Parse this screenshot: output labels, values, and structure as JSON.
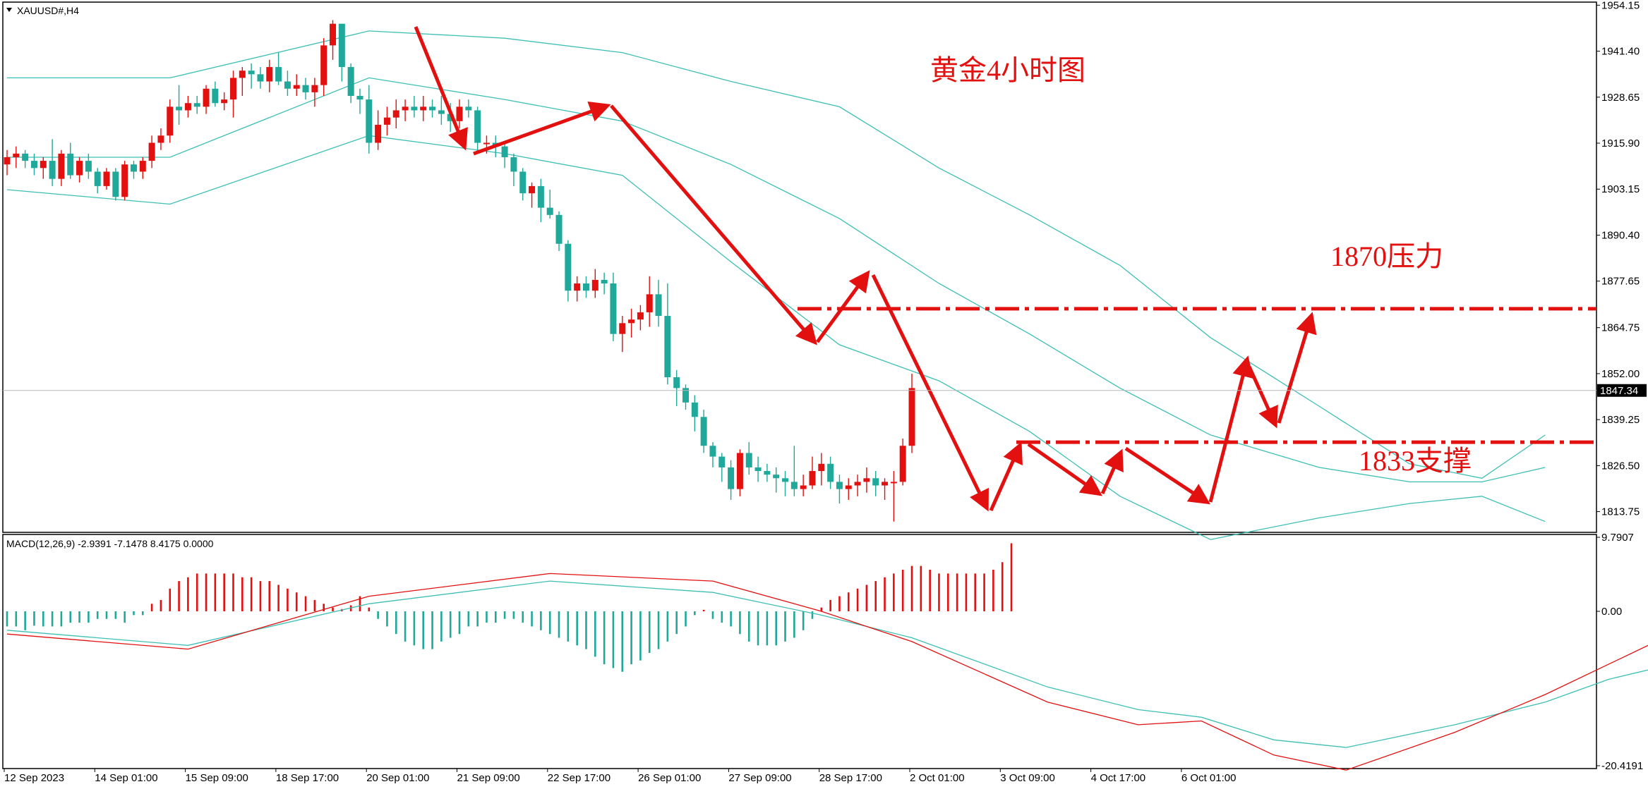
{
  "chart_data": [
    {
      "type": "candlestick",
      "symbol_label": "XAUUSD#,H4",
      "title": "黄金4小时图",
      "price_axis": {
        "ticks": [
          "1954.15",
          "1941.40",
          "1928.65",
          "1915.90",
          "1903.15",
          "1890.40",
          "1877.65",
          "1864.75",
          "1852.00",
          "1839.25",
          "1826.50",
          "1813.75"
        ],
        "range": [
          1808,
          1955
        ],
        "current_price": "1847.34"
      },
      "time_axis": {
        "labels": [
          "12 Sep 2023",
          "14 Sep 01:00",
          "15 Sep 09:00",
          "18 Sep 17:00",
          "20 Sep 01:00",
          "21 Sep 09:00",
          "22 Sep 17:00",
          "26 Sep 01:00",
          "27 Sep 09:00",
          "28 Sep 17:00",
          "2 Oct 01:00",
          "3 Oct 09:00",
          "4 Oct 17:00",
          "6 Oct 01:00"
        ]
      },
      "candles": [
        [
          1910,
          1914,
          1907,
          1912
        ],
        [
          1912,
          1915,
          1909,
          1913
        ],
        [
          1913,
          1914,
          1909,
          1911
        ],
        [
          1911,
          1913,
          1907,
          1909
        ],
        [
          1909,
          1912,
          1906,
          1911
        ],
        [
          1911,
          1917,
          1904,
          1906
        ],
        [
          1906,
          1914,
          1904,
          1913
        ],
        [
          1913,
          1916,
          1906,
          1907
        ],
        [
          1907,
          1912,
          1905,
          1911
        ],
        [
          1911,
          1913,
          1906,
          1908
        ],
        [
          1908,
          1909,
          1902,
          1904
        ],
        [
          1904,
          1909,
          1903,
          1908
        ],
        [
          1908,
          1909,
          1900,
          1901
        ],
        [
          1901,
          1911,
          1900,
          1910
        ],
        [
          1910,
          1911,
          1906,
          1908
        ],
        [
          1908,
          1912,
          1906,
          1911
        ],
        [
          1911,
          1918,
          1909,
          1916
        ],
        [
          1916,
          1920,
          1914,
          1918
        ],
        [
          1918,
          1928,
          1916,
          1926
        ],
        [
          1926,
          1932,
          1921,
          1925
        ],
        [
          1925,
          1929,
          1923,
          1927
        ],
        [
          1927,
          1929,
          1924,
          1926
        ],
        [
          1926,
          1932,
          1924,
          1931
        ],
        [
          1931,
          1933,
          1926,
          1927
        ],
        [
          1927,
          1930,
          1925,
          1928
        ],
        [
          1928,
          1936,
          1923,
          1934
        ],
        [
          1934,
          1937,
          1929,
          1936
        ],
        [
          1936,
          1938,
          1931,
          1935
        ],
        [
          1935,
          1937,
          1931,
          1933
        ],
        [
          1933,
          1939,
          1930,
          1937
        ],
        [
          1937,
          1941,
          1932,
          1933
        ],
        [
          1933,
          1936,
          1929,
          1931
        ],
        [
          1931,
          1935,
          1929,
          1932
        ],
        [
          1932,
          1934,
          1928,
          1930
        ],
        [
          1930,
          1934,
          1926,
          1932
        ],
        [
          1932,
          1945,
          1929,
          1943
        ],
        [
          1943,
          1950,
          1939,
          1949
        ],
        [
          1949,
          1949,
          1933,
          1937
        ],
        [
          1937,
          1938,
          1927,
          1929
        ],
        [
          1929,
          1931,
          1924,
          1928
        ],
        [
          1928,
          1932,
          1913,
          1916
        ],
        [
          1916,
          1925,
          1914,
          1921
        ],
        [
          1921,
          1926,
          1918,
          1923
        ],
        [
          1923,
          1928,
          1920,
          1925
        ],
        [
          1925,
          1928,
          1922,
          1926
        ],
        [
          1926,
          1929,
          1923,
          1925
        ],
        [
          1925,
          1929,
          1922,
          1926
        ],
        [
          1926,
          1928,
          1923,
          1925
        ],
        [
          1925,
          1929,
          1921,
          1924
        ],
        [
          1924,
          1927,
          1919,
          1922
        ],
        [
          1922,
          1928,
          1920,
          1926
        ],
        [
          1926,
          1928,
          1923,
          1925
        ],
        [
          1925,
          1926,
          1913,
          1916
        ],
        [
          1916,
          1918,
          1913,
          1916
        ],
        [
          1916,
          1918,
          1912,
          1915
        ],
        [
          1915,
          1916,
          1909,
          1912
        ],
        [
          1912,
          1913,
          1904,
          1908
        ],
        [
          1908,
          1909,
          1900,
          1902
        ],
        [
          1902,
          1905,
          1898,
          1904
        ],
        [
          1904,
          1906,
          1894,
          1898
        ],
        [
          1898,
          1903,
          1895,
          1896
        ],
        [
          1896,
          1897,
          1886,
          1888
        ],
        [
          1888,
          1889,
          1872,
          1875
        ],
        [
          1875,
          1879,
          1872,
          1877
        ],
        [
          1877,
          1879,
          1873,
          1875
        ],
        [
          1875,
          1881,
          1873,
          1878
        ],
        [
          1878,
          1880,
          1874,
          1877
        ],
        [
          1877,
          1880,
          1861,
          1863
        ],
        [
          1863,
          1868,
          1858,
          1866
        ],
        [
          1866,
          1870,
          1862,
          1867
        ],
        [
          1867,
          1871,
          1864,
          1869
        ],
        [
          1869,
          1879,
          1865,
          1874
        ],
        [
          1874,
          1878,
          1865,
          1868
        ],
        [
          1868,
          1877,
          1849,
          1851
        ],
        [
          1851,
          1853,
          1843,
          1848
        ],
        [
          1848,
          1849,
          1842,
          1844
        ],
        [
          1844,
          1846,
          1836,
          1840
        ],
        [
          1840,
          1842,
          1830,
          1832
        ],
        [
          1832,
          1833,
          1826,
          1829
        ],
        [
          1829,
          1830,
          1822,
          1826
        ],
        [
          1826,
          1828,
          1817,
          1820
        ],
        [
          1820,
          1831,
          1818,
          1830
        ],
        [
          1830,
          1833,
          1824,
          1826
        ],
        [
          1826,
          1829,
          1822,
          1825
        ],
        [
          1825,
          1827,
          1822,
          1824
        ],
        [
          1824,
          1826,
          1819,
          1823
        ],
        [
          1823,
          1825,
          1818,
          1822
        ],
        [
          1822,
          1832,
          1818,
          1820
        ],
        [
          1820,
          1824,
          1818,
          1821
        ],
        [
          1821,
          1829,
          1820,
          1825
        ],
        [
          1825,
          1830,
          1821,
          1827
        ],
        [
          1827,
          1829,
          1820,
          1822
        ],
        [
          1822,
          1824,
          1816,
          1820
        ],
        [
          1820,
          1823,
          1817,
          1821
        ],
        [
          1821,
          1824,
          1818,
          1822
        ],
        [
          1822,
          1826,
          1819,
          1823
        ],
        [
          1823,
          1825,
          1818,
          1821
        ],
        [
          1821,
          1823,
          1817,
          1822
        ],
        [
          1822,
          1825,
          1811,
          1822
        ],
        [
          1822,
          1834,
          1821,
          1832
        ],
        [
          1832,
          1852,
          1830,
          1848
        ]
      ],
      "bollinger_bands": {
        "upper": [
          [
            0,
            1934
          ],
          [
            18,
            1934
          ],
          [
            40,
            1947
          ],
          [
            55,
            1945
          ],
          [
            68,
            1941
          ],
          [
            80,
            1933
          ],
          [
            92,
            1926
          ],
          [
            103,
            1909
          ],
          [
            113,
            1896
          ],
          [
            123,
            1882
          ],
          [
            133,
            1862
          ],
          [
            145,
            1843
          ],
          [
            155,
            1827
          ],
          [
            163,
            1823
          ],
          [
            170,
            1835
          ]
        ],
        "middle": [
          [
            0,
            1912
          ],
          [
            18,
            1912
          ],
          [
            40,
            1934
          ],
          [
            55,
            1928
          ],
          [
            68,
            1922
          ],
          [
            80,
            1910
          ],
          [
            92,
            1895
          ],
          [
            103,
            1877
          ],
          [
            113,
            1863
          ],
          [
            123,
            1848
          ],
          [
            133,
            1835
          ],
          [
            145,
            1826
          ],
          [
            155,
            1822
          ],
          [
            163,
            1822
          ],
          [
            170,
            1826
          ]
        ],
        "lower": [
          [
            0,
            1903
          ],
          [
            18,
            1899
          ],
          [
            40,
            1918
          ],
          [
            55,
            1913
          ],
          [
            68,
            1907
          ],
          [
            80,
            1883
          ],
          [
            92,
            1860
          ],
          [
            103,
            1850
          ],
          [
            113,
            1836
          ],
          [
            123,
            1818
          ],
          [
            133,
            1806
          ],
          [
            145,
            1812
          ],
          [
            155,
            1816
          ],
          [
            163,
            1818
          ],
          [
            170,
            1811
          ]
        ]
      },
      "annotations": {
        "resistance_label": "1870压力",
        "resistance_level": 1870,
        "support_label": "1833支撑",
        "support_level": 1833
      },
      "legend": "none",
      "grid": false
    },
    {
      "type": "macd",
      "label": "MACD(12,26,9) -2.9391 -7.1478 8.4175 0.0000",
      "ticks": [
        "9.7907",
        "0.00",
        "-20.4191"
      ],
      "range": [
        -20.4191,
        9.7907
      ],
      "histogram": [
        -2.0,
        -2.0,
        -2.5,
        -1.9,
        -2.0,
        -2.0,
        -2.0,
        -1.5,
        -1.5,
        -1.5,
        -1.0,
        -1.0,
        -1.0,
        -1.5,
        -0.5,
        -0.5,
        1.0,
        1.5,
        3.0,
        4.0,
        4.5,
        5.0,
        5.0,
        5.0,
        5.0,
        5.0,
        4.5,
        4.5,
        4.0,
        4.0,
        3.5,
        3.0,
        2.5,
        2.0,
        1.5,
        1.0,
        0.5,
        0.3,
        0.8,
        2.0,
        0.5,
        -1.0,
        -2.0,
        -3.0,
        -4.0,
        -4.5,
        -5.0,
        -5.0,
        -4.0,
        -3.5,
        -3.0,
        -2.0,
        -2.0,
        -1.5,
        -1.5,
        -1.0,
        -1.0,
        -1.5,
        -2.0,
        -2.5,
        -3.0,
        -3.5,
        -4.0,
        -4.5,
        -5.0,
        -6.0,
        -7.0,
        -7.5,
        -8.0,
        -7.0,
        -6.5,
        -5.5,
        -5.0,
        -4.0,
        -3.0,
        -2.0,
        -0.5,
        0.2,
        -1.0,
        -1.5,
        -2.0,
        -3.0,
        -4.0,
        -4.5,
        -4.5,
        -4.5,
        -4.0,
        -3.5,
        -2.5,
        -1.0,
        0.5,
        1.5,
        2.0,
        2.5,
        3.0,
        3.5,
        4.0,
        4.5,
        5.0,
        5.5,
        6.0,
        6.0,
        5.5,
        5.0,
        5.0,
        5.0,
        5.0,
        5.0,
        5.0,
        5.5,
        6.5,
        9.0
      ],
      "macd_line": [
        [
          0,
          -3.0
        ],
        [
          20,
          -5.0
        ],
        [
          40,
          2.0
        ],
        [
          60,
          5.0
        ],
        [
          78,
          4.0
        ],
        [
          90,
          0.0
        ],
        [
          100,
          -4.0
        ],
        [
          115,
          -12.0
        ],
        [
          125,
          -15.0
        ],
        [
          132,
          -14.5
        ],
        [
          140,
          -19.0
        ],
        [
          148,
          -21.0
        ],
        [
          160,
          -16.0
        ],
        [
          170,
          -11.0
        ],
        [
          177,
          -7.0
        ],
        [
          184,
          -3.0
        ]
      ],
      "signal_line": [
        [
          0,
          -2.5
        ],
        [
          20,
          -4.5
        ],
        [
          40,
          1.0
        ],
        [
          60,
          4.0
        ],
        [
          78,
          2.5
        ],
        [
          90,
          -0.5
        ],
        [
          100,
          -3.5
        ],
        [
          115,
          -10.0
        ],
        [
          125,
          -13.0
        ],
        [
          132,
          -14.0
        ],
        [
          140,
          -17.0
        ],
        [
          148,
          -18.0
        ],
        [
          160,
          -15.0
        ],
        [
          170,
          -12.0
        ],
        [
          177,
          -9.0
        ],
        [
          184,
          -7.0
        ]
      ]
    }
  ],
  "colors": {
    "bull": "#e31010",
    "bear": "#20a89a",
    "band": "#3dbfb4",
    "macd_line": "#e31010",
    "signal_line": "#3dbfb4",
    "annotation": "#e31010"
  }
}
